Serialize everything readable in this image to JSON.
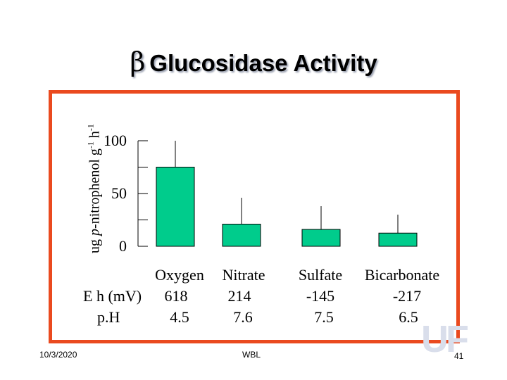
{
  "slide": {
    "title_symbol": "β",
    "title_text": "Glucosidase Activity",
    "date": "10/3/2020",
    "author": "WBL",
    "page_number": "41",
    "logo_text": "UF",
    "frame_color": "#ea4a1f",
    "bar_color": "#00cc8c"
  },
  "chart_data": {
    "type": "bar",
    "title": "β Glucosidase Activity",
    "ylabel": {
      "pre": "ug ",
      "italic": "p",
      "mid": "-nitrophenol g",
      "sup1": "-1",
      "mid2": " h",
      "sup2": "-1"
    },
    "categories": [
      "Oxygen",
      "Nitrate",
      "Sulfate",
      "Bicarbonate"
    ],
    "values": [
      75,
      21,
      16,
      12.5
    ],
    "error_upper": [
      100,
      46,
      38,
      30
    ],
    "ylim": [
      0,
      100
    ],
    "yticks": [
      0,
      25,
      50,
      75,
      100
    ],
    "ytick_labels": [
      "0",
      "",
      "50",
      "",
      "100"
    ],
    "grid": false,
    "table": [
      {
        "label": "E h (mV)",
        "values": [
          "618",
          "214",
          "-145",
          "-217"
        ]
      },
      {
        "label": "p.H",
        "values": [
          "4.5",
          "7.6",
          "7.5",
          "6.5"
        ]
      }
    ]
  }
}
